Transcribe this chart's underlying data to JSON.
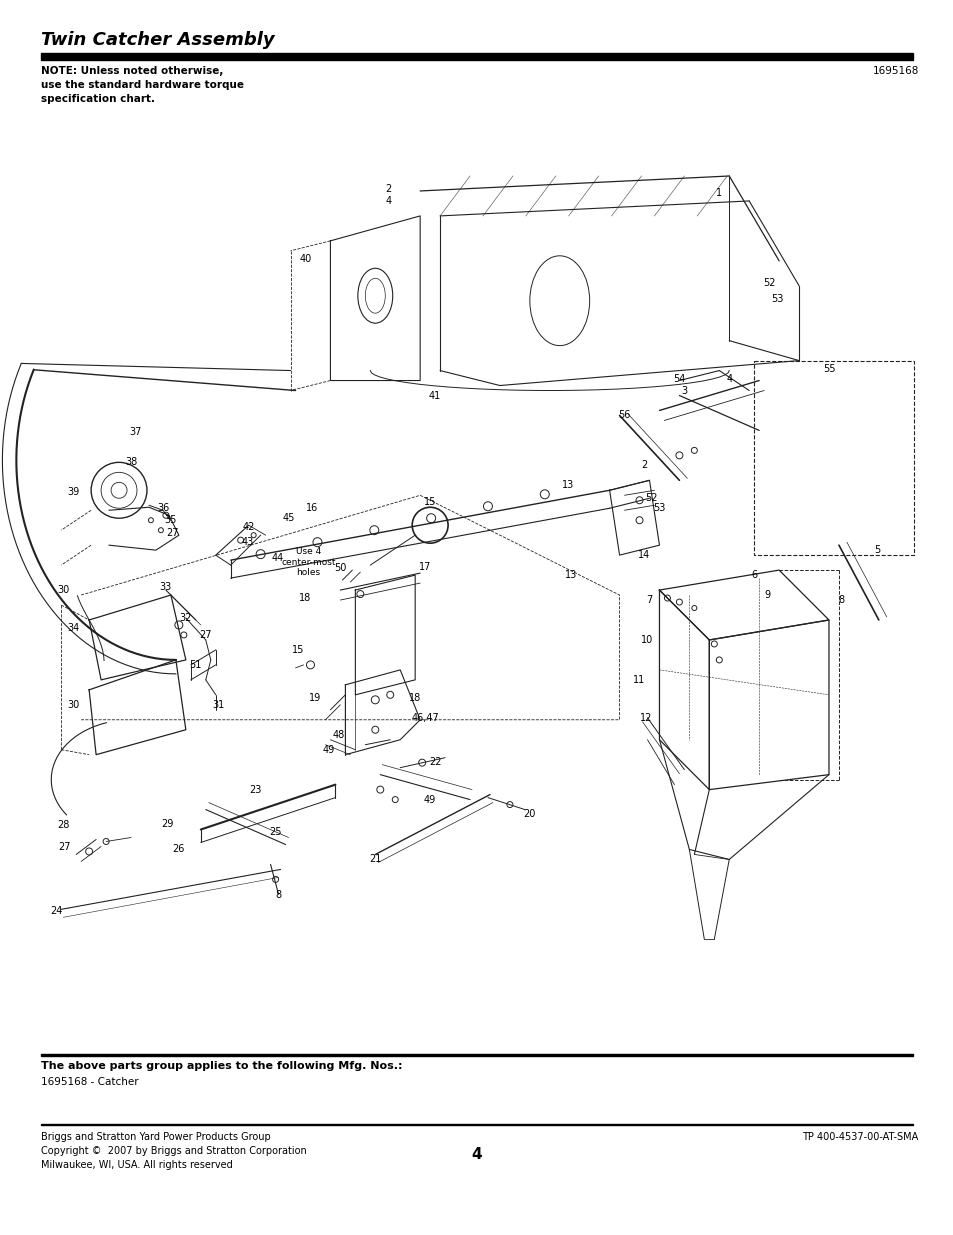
{
  "title": "Twin Catcher Assembly",
  "part_number": "1695168",
  "note_text": "NOTE: Unless noted otherwise,\nuse the standard hardware torque\nspecification chart.",
  "footer_bold_text": "The above parts group applies to the following Mfg. Nos.:",
  "footer_sub_text": "1695168 - Catcher",
  "footer_left_line1": "Briggs and Stratton Yard Power Products Group",
  "footer_left_line2": "Copyright ©  2007 by Briggs and Stratton Corporation",
  "footer_left_line3": "Milwaukee, WI, USA. All rights reserved",
  "footer_center": "4",
  "footer_right": "TP 400-4537-00-AT-SMA",
  "bg_color": "#ffffff",
  "text_color": "#000000",
  "dc": "#222222",
  "title_fontsize": 13,
  "note_fontsize": 7.5,
  "label_fontsize": 7,
  "footer_fontsize": 7.5,
  "small_fontsize": 7,
  "page_num_fontsize": 11
}
